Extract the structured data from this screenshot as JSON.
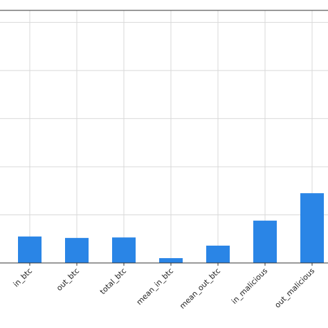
{
  "chart_data": {
    "type": "bar",
    "categories": [
      "in_btc",
      "out_btc",
      "total_btc",
      "mean_in_btc",
      "mean_out_btc",
      "in_malicious",
      "out_malicious"
    ],
    "values": [
      0.55,
      0.52,
      0.53,
      0.1,
      0.36,
      0.88,
      1.45
    ],
    "color": "#2a85e6",
    "ylim": [
      0,
      5.25
    ],
    "yticks": [
      0,
      1,
      2,
      3,
      4,
      5
    ],
    "grid": true
  }
}
